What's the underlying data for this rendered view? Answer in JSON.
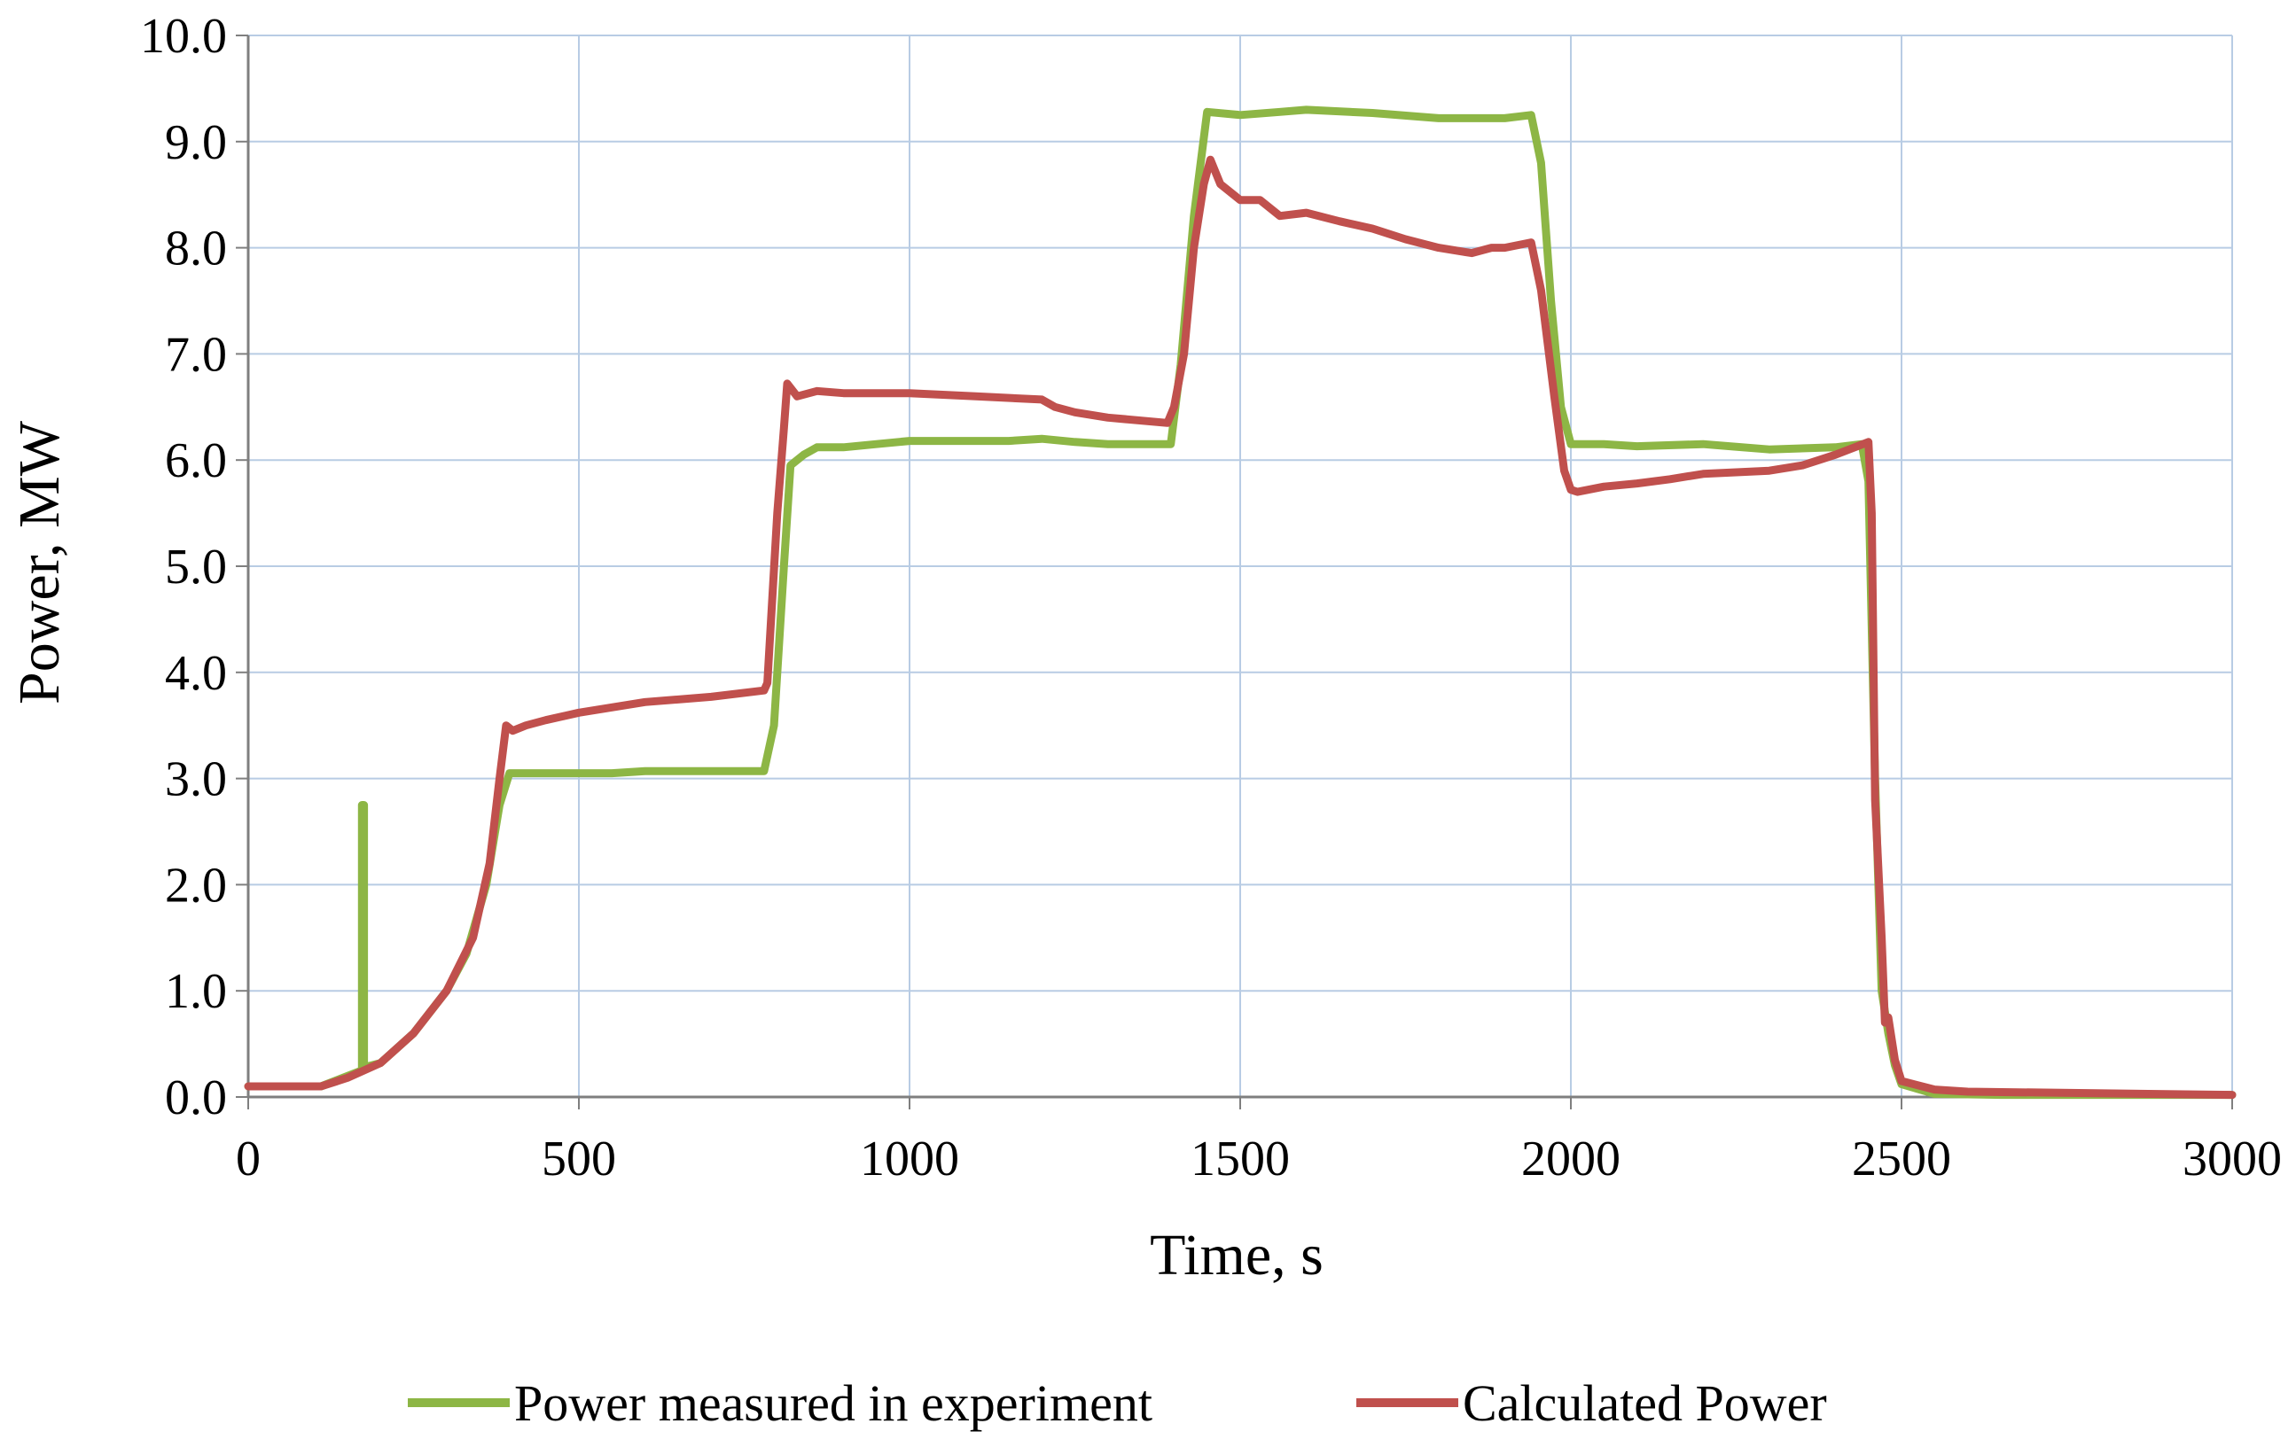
{
  "chart_data": {
    "type": "line",
    "title": "",
    "xlabel": "Time, s",
    "ylabel": "Power, MW",
    "xlim": [
      0,
      3000
    ],
    "ylim": [
      0,
      10
    ],
    "xticks": [
      0,
      500,
      1000,
      1500,
      2000,
      2500,
      3000
    ],
    "xtick_labels": [
      "0",
      "500",
      "1000",
      "1500",
      "2000",
      "2500",
      "3000"
    ],
    "yticks": [
      0,
      1,
      2,
      3,
      4,
      5,
      6,
      7,
      8,
      9,
      10
    ],
    "ytick_labels": [
      "0.0",
      "1.0",
      "2.0",
      "3.0",
      "4.0",
      "5.0",
      "6.0",
      "7.0",
      "8.0",
      "9.0",
      "10.0"
    ],
    "grid": true,
    "legend_position": "bottom",
    "series": [
      {
        "name": "Power measured in experiment",
        "color": "#8DB645",
        "points": [
          [
            0,
            0.1
          ],
          [
            110,
            0.1
          ],
          [
            172,
            0.25
          ],
          [
            172,
            2.75
          ],
          [
            175,
            2.75
          ],
          [
            175,
            0.28
          ],
          [
            200,
            0.32
          ],
          [
            250,
            0.6
          ],
          [
            300,
            1.0
          ],
          [
            330,
            1.35
          ],
          [
            360,
            2.0
          ],
          [
            380,
            2.75
          ],
          [
            395,
            3.05
          ],
          [
            450,
            3.05
          ],
          [
            500,
            3.05
          ],
          [
            550,
            3.05
          ],
          [
            600,
            3.07
          ],
          [
            700,
            3.07
          ],
          [
            780,
            3.07
          ],
          [
            795,
            3.5
          ],
          [
            810,
            5.0
          ],
          [
            820,
            5.95
          ],
          [
            840,
            6.05
          ],
          [
            860,
            6.12
          ],
          [
            900,
            6.12
          ],
          [
            950,
            6.15
          ],
          [
            1000,
            6.18
          ],
          [
            1100,
            6.18
          ],
          [
            1150,
            6.18
          ],
          [
            1200,
            6.2
          ],
          [
            1250,
            6.17
          ],
          [
            1300,
            6.15
          ],
          [
            1395,
            6.15
          ],
          [
            1410,
            6.9
          ],
          [
            1430,
            8.3
          ],
          [
            1450,
            9.28
          ],
          [
            1500,
            9.25
          ],
          [
            1560,
            9.28
          ],
          [
            1600,
            9.3
          ],
          [
            1700,
            9.27
          ],
          [
            1800,
            9.22
          ],
          [
            1900,
            9.22
          ],
          [
            1940,
            9.25
          ],
          [
            1955,
            8.8
          ],
          [
            1970,
            7.5
          ],
          [
            1985,
            6.5
          ],
          [
            2000,
            6.15
          ],
          [
            2050,
            6.15
          ],
          [
            2100,
            6.13
          ],
          [
            2200,
            6.15
          ],
          [
            2300,
            6.1
          ],
          [
            2400,
            6.12
          ],
          [
            2440,
            6.15
          ],
          [
            2450,
            5.8
          ],
          [
            2460,
            3.0
          ],
          [
            2470,
            1.0
          ],
          [
            2480,
            0.6
          ],
          [
            2490,
            0.3
          ],
          [
            2500,
            0.12
          ],
          [
            2550,
            0.03
          ],
          [
            2650,
            0.02
          ],
          [
            3000,
            0.02
          ]
        ]
      },
      {
        "name": "Calculated Power",
        "color": "#C0504D",
        "points": [
          [
            0,
            0.1
          ],
          [
            110,
            0.1
          ],
          [
            150,
            0.18
          ],
          [
            200,
            0.32
          ],
          [
            250,
            0.6
          ],
          [
            300,
            1.0
          ],
          [
            340,
            1.5
          ],
          [
            365,
            2.2
          ],
          [
            380,
            3.0
          ],
          [
            390,
            3.5
          ],
          [
            400,
            3.45
          ],
          [
            420,
            3.5
          ],
          [
            450,
            3.55
          ],
          [
            500,
            3.62
          ],
          [
            550,
            3.67
          ],
          [
            600,
            3.72
          ],
          [
            700,
            3.77
          ],
          [
            780,
            3.83
          ],
          [
            785,
            3.9
          ],
          [
            800,
            5.5
          ],
          [
            810,
            6.3
          ],
          [
            815,
            6.72
          ],
          [
            830,
            6.6
          ],
          [
            860,
            6.65
          ],
          [
            900,
            6.63
          ],
          [
            1000,
            6.63
          ],
          [
            1100,
            6.6
          ],
          [
            1200,
            6.57
          ],
          [
            1220,
            6.5
          ],
          [
            1250,
            6.45
          ],
          [
            1300,
            6.4
          ],
          [
            1390,
            6.35
          ],
          [
            1400,
            6.5
          ],
          [
            1415,
            7.0
          ],
          [
            1430,
            8.0
          ],
          [
            1445,
            8.6
          ],
          [
            1455,
            8.83
          ],
          [
            1470,
            8.6
          ],
          [
            1500,
            8.45
          ],
          [
            1530,
            8.45
          ],
          [
            1560,
            8.3
          ],
          [
            1600,
            8.33
          ],
          [
            1650,
            8.25
          ],
          [
            1700,
            8.18
          ],
          [
            1750,
            8.08
          ],
          [
            1800,
            8.0
          ],
          [
            1850,
            7.95
          ],
          [
            1880,
            8.0
          ],
          [
            1900,
            8.0
          ],
          [
            1940,
            8.05
          ],
          [
            1955,
            7.6
          ],
          [
            1975,
            6.6
          ],
          [
            1990,
            5.9
          ],
          [
            2000,
            5.72
          ],
          [
            2010,
            5.7
          ],
          [
            2050,
            5.75
          ],
          [
            2100,
            5.78
          ],
          [
            2150,
            5.82
          ],
          [
            2200,
            5.87
          ],
          [
            2300,
            5.9
          ],
          [
            2350,
            5.95
          ],
          [
            2400,
            6.05
          ],
          [
            2450,
            6.17
          ],
          [
            2455,
            5.5
          ],
          [
            2460,
            2.8
          ],
          [
            2470,
            1.5
          ],
          [
            2475,
            0.7
          ],
          [
            2480,
            0.75
          ],
          [
            2490,
            0.35
          ],
          [
            2500,
            0.15
          ],
          [
            2550,
            0.07
          ],
          [
            2600,
            0.05
          ],
          [
            3000,
            0.02
          ]
        ]
      }
    ]
  }
}
